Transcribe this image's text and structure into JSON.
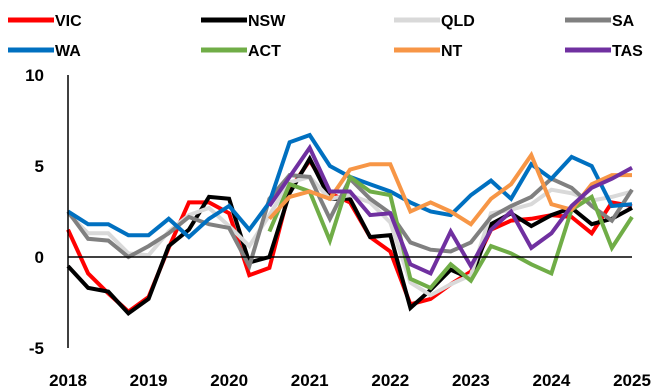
{
  "chart_data": {
    "type": "line",
    "x": [
      2018.0,
      2018.25,
      2018.5,
      2018.75,
      2019.0,
      2019.25,
      2019.5,
      2019.75,
      2020.0,
      2020.25,
      2020.5,
      2020.75,
      2021.0,
      2021.25,
      2021.5,
      2021.75,
      2022.0,
      2022.25,
      2022.5,
      2022.75,
      2023.0,
      2023.25,
      2023.5,
      2023.75,
      2024.0,
      2024.25,
      2024.5,
      2024.75,
      2025.0
    ],
    "xticks": [
      "2018",
      "2019",
      "2020",
      "2021",
      "2022",
      "2023",
      "2024",
      "2025"
    ],
    "yticks": [
      "-5",
      "0",
      "5",
      "10"
    ],
    "ylim": [
      -5,
      10
    ],
    "xlim": [
      2018,
      2025
    ],
    "series": [
      {
        "name": "VIC",
        "color": "#ff0000",
        "values": [
          1.5,
          -0.9,
          -2.0,
          -3.0,
          -2.2,
          0.5,
          3.0,
          3.0,
          2.4,
          -1.0,
          -0.6,
          3.7,
          5.3,
          3.5,
          3.0,
          1.1,
          0.3,
          -2.6,
          -2.3,
          -1.5,
          -0.8,
          1.5,
          2.0,
          2.1,
          2.3,
          2.2,
          1.3,
          3.0,
          2.8
        ]
      },
      {
        "name": "NSW",
        "color": "#000000",
        "values": [
          -0.5,
          -1.7,
          -1.9,
          -3.1,
          -2.3,
          0.6,
          1.5,
          3.3,
          3.2,
          -0.3,
          0.0,
          3.5,
          5.4,
          3.2,
          3.2,
          1.1,
          1.2,
          -2.8,
          -1.8,
          -0.7,
          -1.2,
          1.8,
          2.4,
          1.7,
          2.3,
          2.7,
          1.8,
          2.1,
          2.7
        ]
      },
      {
        "name": "QLD",
        "color": "#d9d9d9",
        "values": [
          2.4,
          1.3,
          1.3,
          0.2,
          0.1,
          1.4,
          2.3,
          2.7,
          1.7,
          0.6,
          2.3,
          4.1,
          4.4,
          3.2,
          3.4,
          3.0,
          1.9,
          -1.4,
          -2.1,
          -1.5,
          -1.0,
          2.4,
          2.6,
          2.9,
          3.7,
          3.5,
          3.1,
          3.3,
          3.6
        ]
      },
      {
        "name": "SA",
        "color": "#808080",
        "values": [
          2.5,
          1.0,
          0.9,
          0.0,
          0.6,
          1.3,
          2.2,
          1.8,
          1.6,
          -0.5,
          3.2,
          4.5,
          4.4,
          2.1,
          4.3,
          3.2,
          2.4,
          0.8,
          0.4,
          0.3,
          0.8,
          2.2,
          2.8,
          3.3,
          4.3,
          3.8,
          2.8,
          2.0,
          3.7
        ]
      },
      {
        "name": "WA",
        "color": "#0070c0",
        "values": [
          2.5,
          1.8,
          1.8,
          1.2,
          1.2,
          2.1,
          1.1,
          2.1,
          2.8,
          1.5,
          3.0,
          6.3,
          6.7,
          5.0,
          4.4,
          4.0,
          3.6,
          3.0,
          2.5,
          2.3,
          3.4,
          4.2,
          3.2,
          5.1,
          4.3,
          5.5,
          5.0,
          2.8,
          2.9
        ]
      },
      {
        "name": "ACT",
        "color": "#70ad47",
        "values": [
          null,
          null,
          null,
          null,
          null,
          null,
          null,
          null,
          null,
          null,
          1.4,
          4.0,
          3.6,
          0.9,
          4.4,
          3.6,
          3.4,
          -1.2,
          -1.7,
          -0.4,
          -1.3,
          0.6,
          0.2,
          -0.4,
          -0.9,
          2.6,
          3.3,
          0.5,
          2.2
        ]
      },
      {
        "name": "NT",
        "color": "#f79646",
        "values": [
          null,
          null,
          null,
          null,
          null,
          null,
          null,
          null,
          null,
          null,
          2.1,
          3.3,
          3.6,
          3.2,
          4.8,
          5.1,
          5.1,
          2.5,
          3.0,
          2.5,
          1.8,
          3.2,
          4.0,
          5.6,
          2.9,
          2.6,
          4.0,
          4.5,
          4.5
        ]
      },
      {
        "name": "TAS",
        "color": "#7030a0",
        "values": [
          null,
          null,
          null,
          null,
          null,
          null,
          null,
          null,
          null,
          null,
          2.8,
          4.4,
          6.0,
          3.6,
          3.6,
          2.3,
          2.4,
          -0.4,
          -0.9,
          1.4,
          -0.5,
          1.5,
          2.5,
          0.5,
          1.3,
          2.8,
          3.8,
          4.3,
          4.9
        ]
      }
    ]
  }
}
